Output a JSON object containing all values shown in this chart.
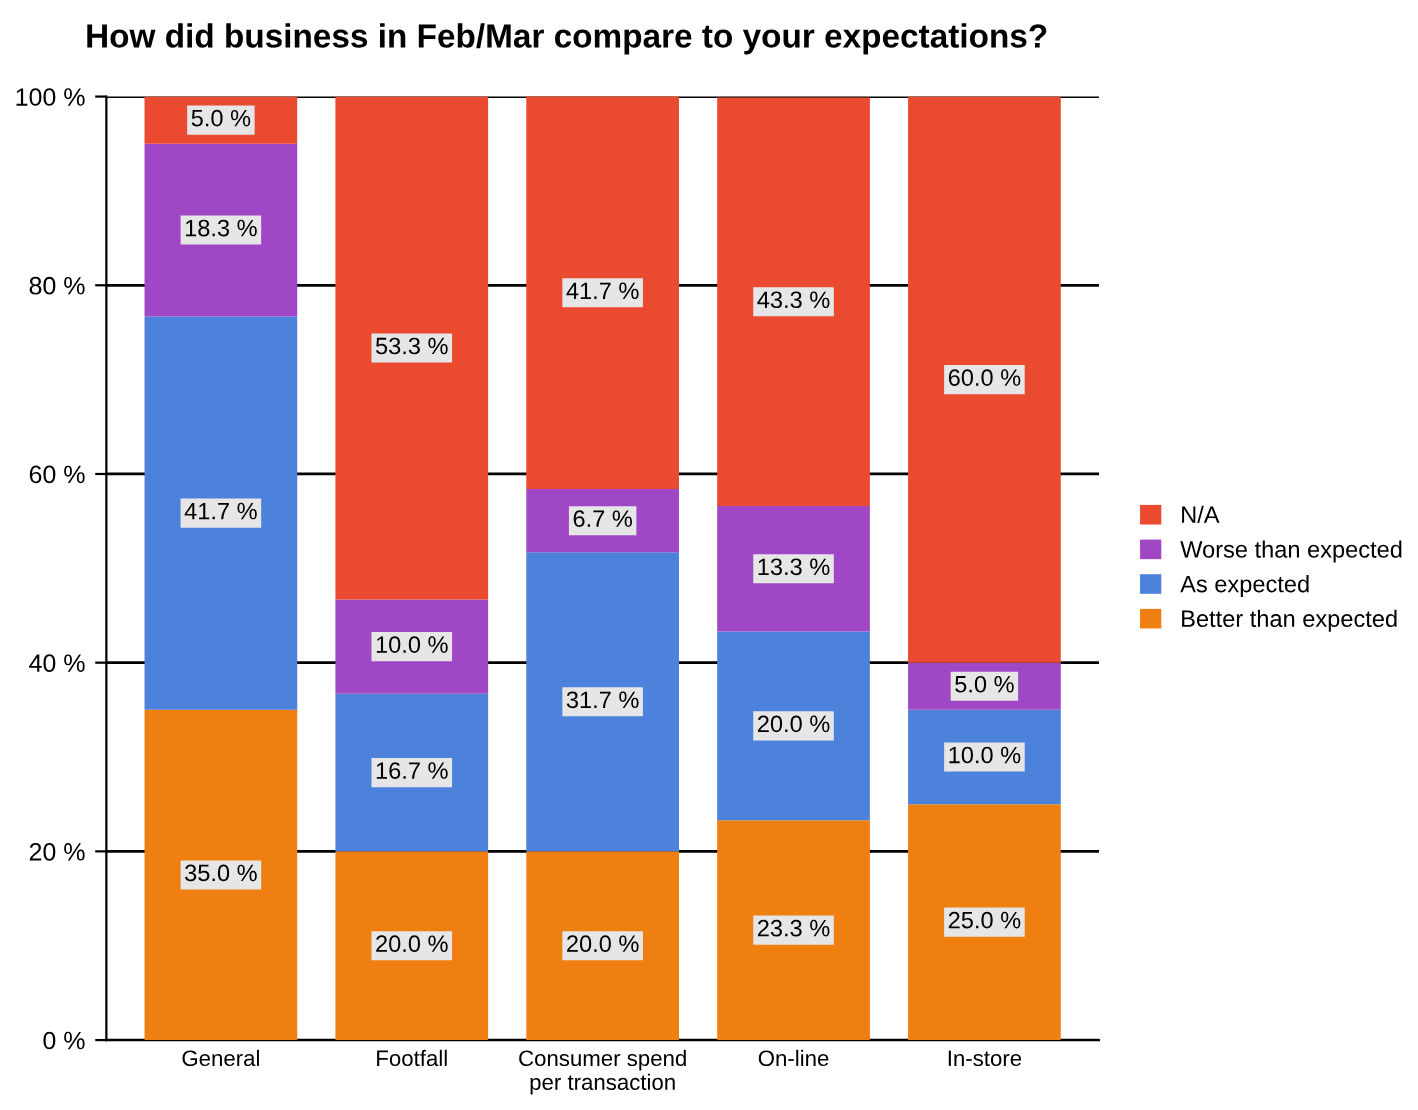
{
  "chart_data": {
    "type": "bar",
    "stacked": true,
    "title": "How did business in Feb/Mar compare to your expectations?",
    "categories": [
      "General",
      "Footfall",
      "Consumer spend\nper transaction",
      "On-line",
      "In-store"
    ],
    "series": [
      {
        "name": "Better than expected",
        "color": "#ee7f10",
        "values": [
          35.0,
          20.0,
          20.0,
          23.3,
          25.0
        ],
        "value_labels": [
          "35.0 %",
          "20.0 %",
          "20.0 %",
          "23.3 %",
          "25.0 %"
        ]
      },
      {
        "name": "As expected",
        "color": "#4d82dc",
        "values": [
          41.7,
          16.7,
          31.7,
          20.0,
          10.0
        ],
        "value_labels": [
          "41.7 %",
          "16.7 %",
          "31.7 %",
          "20.0 %",
          "10.0 %"
        ]
      },
      {
        "name": "Worse than expected",
        "color": "#a047c6",
        "values": [
          18.3,
          10.0,
          6.7,
          13.3,
          5.0
        ],
        "value_labels": [
          "18.3 %",
          "10.0 %",
          "6.7 %",
          "13.3 %",
          "5.0 %"
        ]
      },
      {
        "name": "N/A",
        "color": "#ea4b30",
        "values": [
          5.0,
          53.3,
          41.7,
          43.3,
          60.0
        ],
        "value_labels": [
          "5.0 %",
          "53.3 %",
          "41.7 %",
          "43.3 %",
          "60.0 %"
        ]
      }
    ],
    "ylim": [
      0,
      100
    ],
    "yticks": [
      {
        "value": 0,
        "label": "0 %"
      },
      {
        "value": 20,
        "label": "20 %"
      },
      {
        "value": 40,
        "label": "40 %"
      },
      {
        "value": 60,
        "label": "60 %"
      },
      {
        "value": 80,
        "label": "80 %"
      },
      {
        "value": 100,
        "label": "100 %"
      }
    ],
    "grid": "y",
    "legend": "right"
  }
}
